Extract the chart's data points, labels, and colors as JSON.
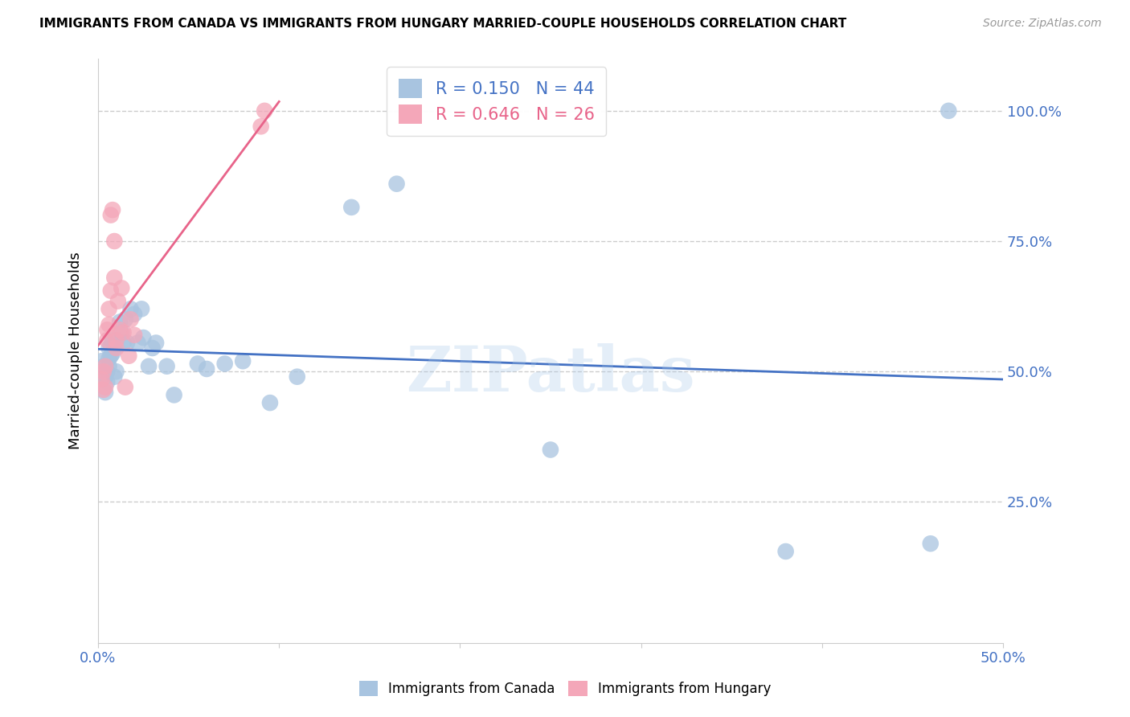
{
  "title": "IMMIGRANTS FROM CANADA VS IMMIGRANTS FROM HUNGARY MARRIED-COUPLE HOUSEHOLDS CORRELATION CHART",
  "source": "Source: ZipAtlas.com",
  "ylabel": "Married-couple Households",
  "xlim": [
    0.0,
    0.5
  ],
  "ylim": [
    -0.02,
    1.1
  ],
  "canada_R": 0.15,
  "canada_N": 44,
  "hungary_R": 0.646,
  "hungary_N": 26,
  "canada_color": "#a8c4e0",
  "hungary_color": "#f4a7b9",
  "canada_line_color": "#4472c4",
  "hungary_line_color": "#e8648a",
  "bottom_legend_canada": "Immigrants from Canada",
  "bottom_legend_hungary": "Immigrants from Hungary",
  "watermark": "ZIPatlas",
  "canada_x": [
    0.002,
    0.003,
    0.004,
    0.004,
    0.005,
    0.005,
    0.006,
    0.006,
    0.006,
    0.007,
    0.007,
    0.008,
    0.008,
    0.009,
    0.009,
    0.01,
    0.01,
    0.012,
    0.013,
    0.014,
    0.015,
    0.016,
    0.018,
    0.02,
    0.022,
    0.024,
    0.025,
    0.028,
    0.03,
    0.032,
    0.038,
    0.042,
    0.055,
    0.06,
    0.07,
    0.08,
    0.095,
    0.11,
    0.14,
    0.165,
    0.25,
    0.38,
    0.46,
    0.47
  ],
  "canada_y": [
    0.52,
    0.51,
    0.49,
    0.46,
    0.48,
    0.5,
    0.545,
    0.525,
    0.51,
    0.55,
    0.53,
    0.56,
    0.535,
    0.545,
    0.49,
    0.56,
    0.5,
    0.595,
    0.575,
    0.555,
    0.6,
    0.555,
    0.62,
    0.61,
    0.555,
    0.62,
    0.565,
    0.51,
    0.545,
    0.555,
    0.51,
    0.455,
    0.515,
    0.505,
    0.515,
    0.52,
    0.44,
    0.49,
    0.815,
    0.86,
    0.35,
    0.155,
    0.17,
    1.0
  ],
  "hungary_x": [
    0.002,
    0.003,
    0.003,
    0.004,
    0.004,
    0.005,
    0.005,
    0.006,
    0.006,
    0.007,
    0.007,
    0.008,
    0.009,
    0.009,
    0.01,
    0.01,
    0.011,
    0.012,
    0.013,
    0.014,
    0.015,
    0.017,
    0.018,
    0.02,
    0.09,
    0.092
  ],
  "hungary_y": [
    0.485,
    0.5,
    0.465,
    0.47,
    0.51,
    0.58,
    0.56,
    0.62,
    0.59,
    0.655,
    0.8,
    0.81,
    0.75,
    0.68,
    0.545,
    0.56,
    0.635,
    0.58,
    0.66,
    0.575,
    0.47,
    0.53,
    0.6,
    0.57,
    0.97,
    1.0
  ]
}
